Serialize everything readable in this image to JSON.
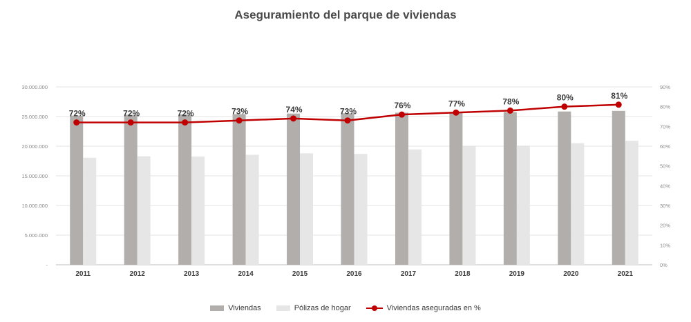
{
  "chart_data": {
    "type": "bar",
    "title": "Aseguramiento del parque de viviendas",
    "categories": [
      "2011",
      "2012",
      "2013",
      "2014",
      "2015",
      "2016",
      "2017",
      "2018",
      "2019",
      "2020",
      "2021"
    ],
    "series": [
      {
        "name": "Viviendas",
        "type": "bar",
        "axis": "left",
        "color": "#b1aeac",
        "values": [
          25150000,
          25300000,
          25350000,
          25400000,
          25500000,
          25550000,
          25650000,
          25700000,
          25750000,
          25850000,
          25950000
        ]
      },
      {
        "name": "Pólizas de hogar",
        "type": "bar",
        "axis": "left",
        "color": "#e6e6e6",
        "values": [
          18050000,
          18300000,
          18250000,
          18550000,
          18800000,
          18700000,
          19450000,
          19950000,
          20100000,
          20500000,
          20900000
        ]
      },
      {
        "name": "Viviendas aseguradas en %",
        "type": "line",
        "axis": "right",
        "color": "#c00000",
        "values": [
          72,
          72,
          72,
          73,
          74,
          73,
          76,
          77,
          78,
          80,
          81
        ],
        "labels": [
          "72%",
          "72%",
          "72%",
          "73%",
          "74%",
          "73%",
          "76%",
          "77%",
          "78%",
          "80%",
          "81%"
        ]
      }
    ],
    "y_left": {
      "ylim": [
        0,
        30000000
      ],
      "ticks": [
        "-",
        "5.000.000",
        "10.000.000",
        "15.000.000",
        "20.000.000",
        "25.000.000",
        "30.000.000"
      ]
    },
    "y_right": {
      "ylim": [
        0,
        90
      ],
      "ticks": [
        "0%",
        "10%",
        "20%",
        "30%",
        "40%",
        "50%",
        "60%",
        "70%",
        "80%",
        "90%"
      ]
    },
    "grid": true,
    "legend_position": "bottom"
  }
}
